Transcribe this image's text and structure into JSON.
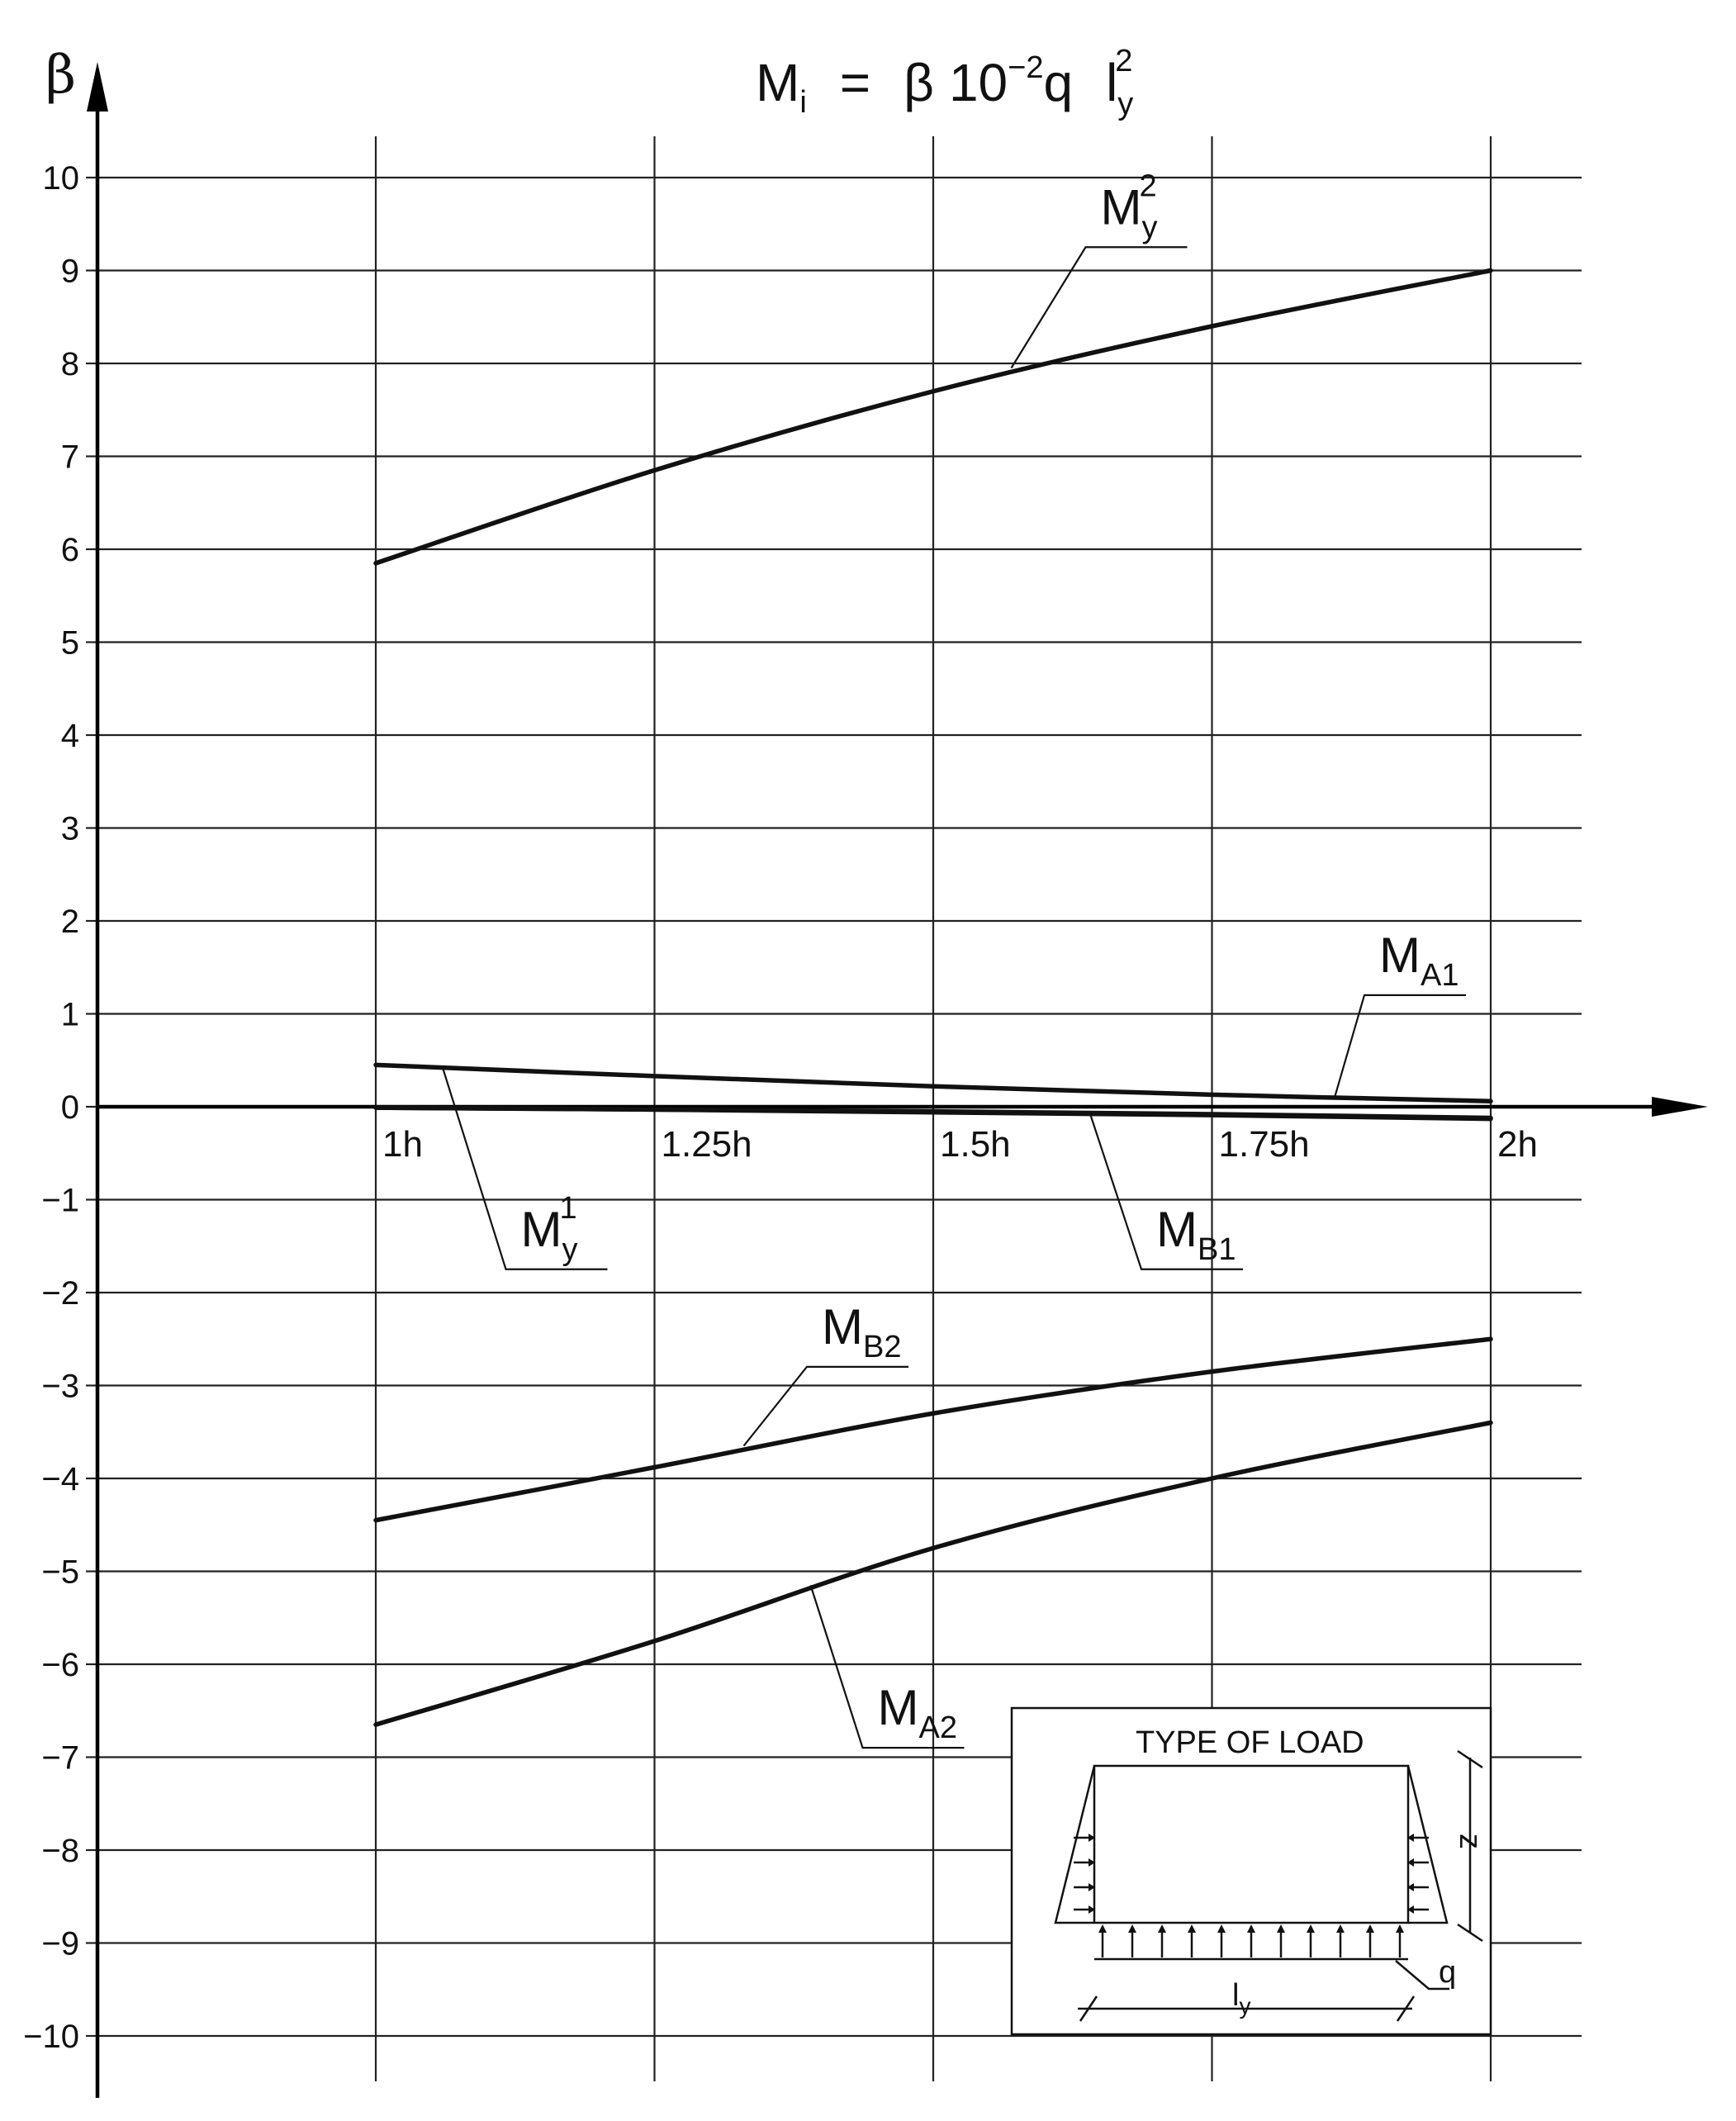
{
  "chart_data": {
    "type": "line",
    "title": {
      "lhs_main": "M",
      "lhs_sub": "i",
      "equals": "=",
      "beta_symbol": "β",
      "coef_base": "10",
      "coef_exp": "−2",
      "load": "q",
      "span_main": "l",
      "span_sub": "y",
      "span_exp": "2"
    },
    "ylabel": "β",
    "xlabel": "",
    "x_categories": [
      "1h",
      "1.25h",
      "1.5h",
      "1.75h",
      "2h"
    ],
    "x_range": [
      1.0,
      2.0
    ],
    "x_ticks": [
      1.0,
      1.25,
      1.5,
      1.75,
      2.0
    ],
    "ylim": [
      -10,
      10
    ],
    "y_ticks": [
      10,
      9,
      8,
      7,
      6,
      5,
      4,
      3,
      2,
      1,
      0,
      -1,
      -2,
      -3,
      -4,
      -5,
      -6,
      -7,
      -8,
      -9,
      -10
    ],
    "y_tick_labels": [
      "10",
      "9",
      "8",
      "7",
      "6",
      "5",
      "4",
      "3",
      "2",
      "1",
      "0",
      "−1",
      "−2",
      "−3",
      "−4",
      "−5",
      "−6",
      "−7",
      "−8",
      "−9",
      "−10"
    ],
    "grid": true,
    "series": [
      {
        "name": "My2",
        "label_main": "M",
        "label_sub": "y",
        "label_sup": "2",
        "x": [
          1.0,
          1.25,
          1.5,
          1.75,
          2.0
        ],
        "values": [
          5.85,
          6.85,
          7.7,
          8.4,
          9.0
        ],
        "label_anchor": [
          1.65,
          9.5
        ],
        "leader_target": [
          1.57,
          7.95
        ]
      },
      {
        "name": "MA1",
        "label_main": "M",
        "label_sub": "A1",
        "label_sup": "",
        "x": [
          1.0,
          1.25,
          1.5,
          1.75,
          2.0
        ],
        "values": [
          0.45,
          0.33,
          0.22,
          0.13,
          0.06
        ],
        "label_anchor": [
          1.9,
          1.45
        ],
        "leader_target": [
          1.86,
          0.1
        ]
      },
      {
        "name": "My1",
        "label_main": "M",
        "label_sub": "y",
        "label_sup": "1",
        "x": [
          1.0,
          1.25,
          1.5,
          1.75,
          2.0
        ],
        "values": [
          -0.01,
          -0.03,
          -0.06,
          -0.09,
          -0.13
        ],
        "label_anchor": [
          1.13,
          -1.5
        ],
        "leader_target": [
          1.06,
          0.42
        ]
      },
      {
        "name": "MB1",
        "label_main": "M",
        "label_sub": "B1",
        "label_sup": "",
        "x": [
          1.0,
          1.25,
          1.5,
          1.75,
          2.0
        ],
        "values": [
          -0.01,
          -0.03,
          -0.05,
          -0.08,
          -0.12
        ],
        "label_anchor": [
          1.7,
          -1.5
        ],
        "leader_target": [
          1.64,
          -0.05
        ]
      },
      {
        "name": "MB2",
        "label_main": "M",
        "label_sub": "B2",
        "label_sup": "",
        "x": [
          1.0,
          1.25,
          1.5,
          1.75,
          2.0
        ],
        "values": [
          -4.45,
          -3.88,
          -3.3,
          -2.85,
          -2.5
        ],
        "label_anchor": [
          1.4,
          -2.55
        ],
        "leader_target": [
          1.33,
          -3.65
        ]
      },
      {
        "name": "MA2",
        "label_main": "M",
        "label_sub": "A2",
        "label_sup": "",
        "x": [
          1.0,
          1.25,
          1.5,
          1.75,
          2.0
        ],
        "values": [
          -6.65,
          -5.75,
          -4.75,
          -4.0,
          -3.4
        ],
        "label_anchor": [
          1.45,
          -6.65
        ],
        "leader_target": [
          1.39,
          -5.15
        ]
      }
    ],
    "inset": {
      "title": "TYPE OF LOAD",
      "load_label": "q",
      "span_main": "l",
      "span_sub": "y",
      "height_label": "z"
    }
  }
}
